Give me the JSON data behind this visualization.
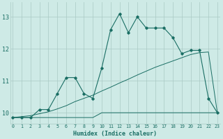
{
  "xlabel": "Humidex (Indice chaleur)",
  "background_color": "#ceeae6",
  "line_color": "#1a6e64",
  "grid_color": "#aacac4",
  "x_values": [
    0,
    1,
    2,
    3,
    4,
    5,
    6,
    7,
    8,
    9,
    10,
    11,
    12,
    13,
    14,
    15,
    16,
    17,
    18,
    19,
    20,
    21,
    22,
    23
  ],
  "main_line": [
    9.85,
    9.85,
    9.85,
    10.1,
    10.1,
    10.6,
    11.1,
    11.1,
    10.6,
    10.45,
    11.4,
    12.6,
    13.1,
    12.5,
    13.0,
    12.65,
    12.65,
    12.65,
    12.35,
    11.85,
    11.95,
    11.95,
    10.45,
    10.0
  ],
  "trend_line1": [
    9.85,
    9.88,
    9.91,
    9.97,
    10.03,
    10.12,
    10.22,
    10.35,
    10.45,
    10.55,
    10.68,
    10.8,
    10.93,
    11.05,
    11.18,
    11.3,
    11.42,
    11.52,
    11.62,
    11.72,
    11.82,
    11.88,
    11.9,
    10.0
  ],
  "flat_line_x": [
    0,
    9,
    10,
    21,
    22,
    23
  ],
  "flat_line_y": [
    9.85,
    9.85,
    10.0,
    10.0,
    10.0,
    10.0
  ],
  "ylim": [
    9.65,
    13.45
  ],
  "xlim": [
    -0.3,
    23.3
  ],
  "yticks": [
    10,
    11,
    12,
    13
  ],
  "xticks": [
    0,
    1,
    2,
    3,
    4,
    5,
    6,
    7,
    8,
    9,
    10,
    11,
    12,
    13,
    14,
    15,
    16,
    17,
    18,
    19,
    20,
    21,
    22,
    23
  ]
}
